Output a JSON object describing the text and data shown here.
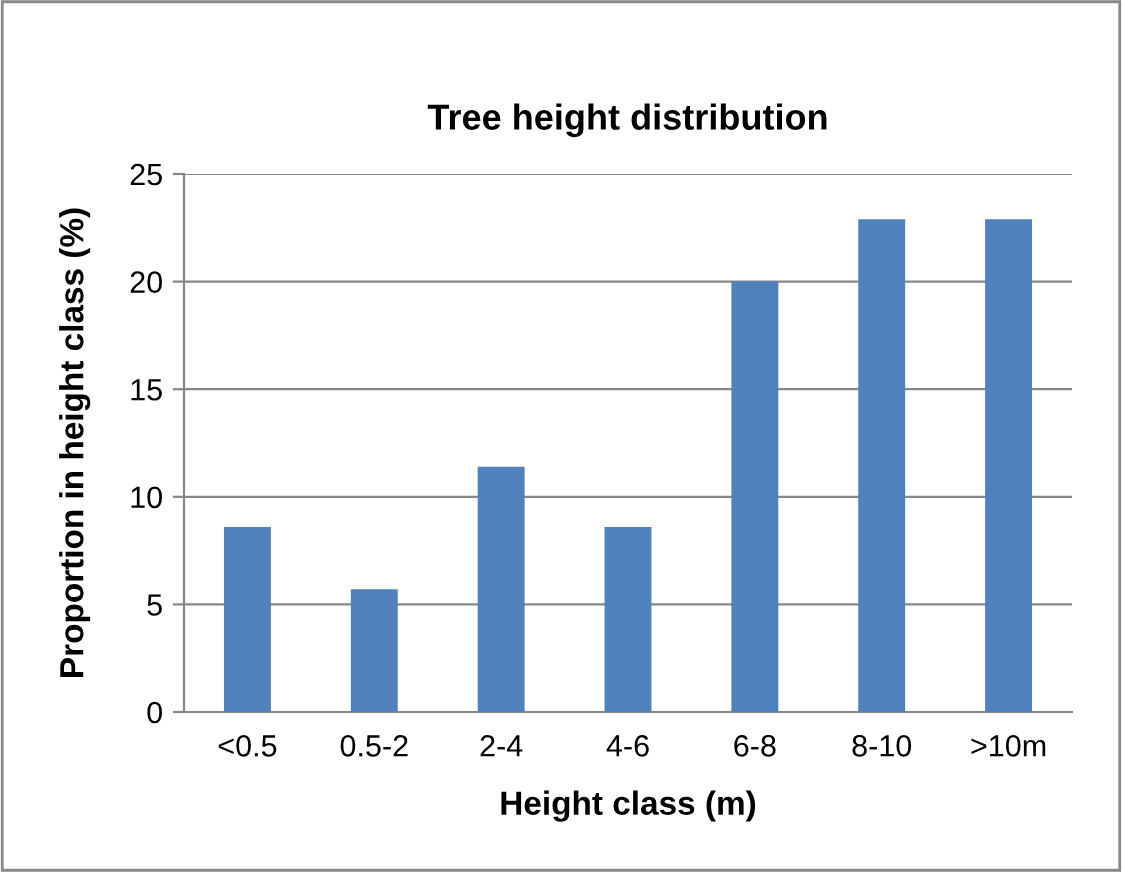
{
  "chart_data": {
    "type": "bar",
    "title": "Tree height distribution",
    "xlabel": "Height class (m)",
    "ylabel": "Proportion in height class (%)",
    "categories": [
      "<0.5",
      "0.5-2",
      "2-4",
      "4-6",
      "6-8",
      "8-10",
      ">10m"
    ],
    "values": [
      8.6,
      5.7,
      11.4,
      8.6,
      20,
      22.9,
      22.9
    ],
    "color": "#4f81bd",
    "ylim": [
      0,
      25
    ],
    "yticks": [
      0,
      5,
      10,
      15,
      20,
      25
    ],
    "grid": "y",
    "legend": false
  }
}
